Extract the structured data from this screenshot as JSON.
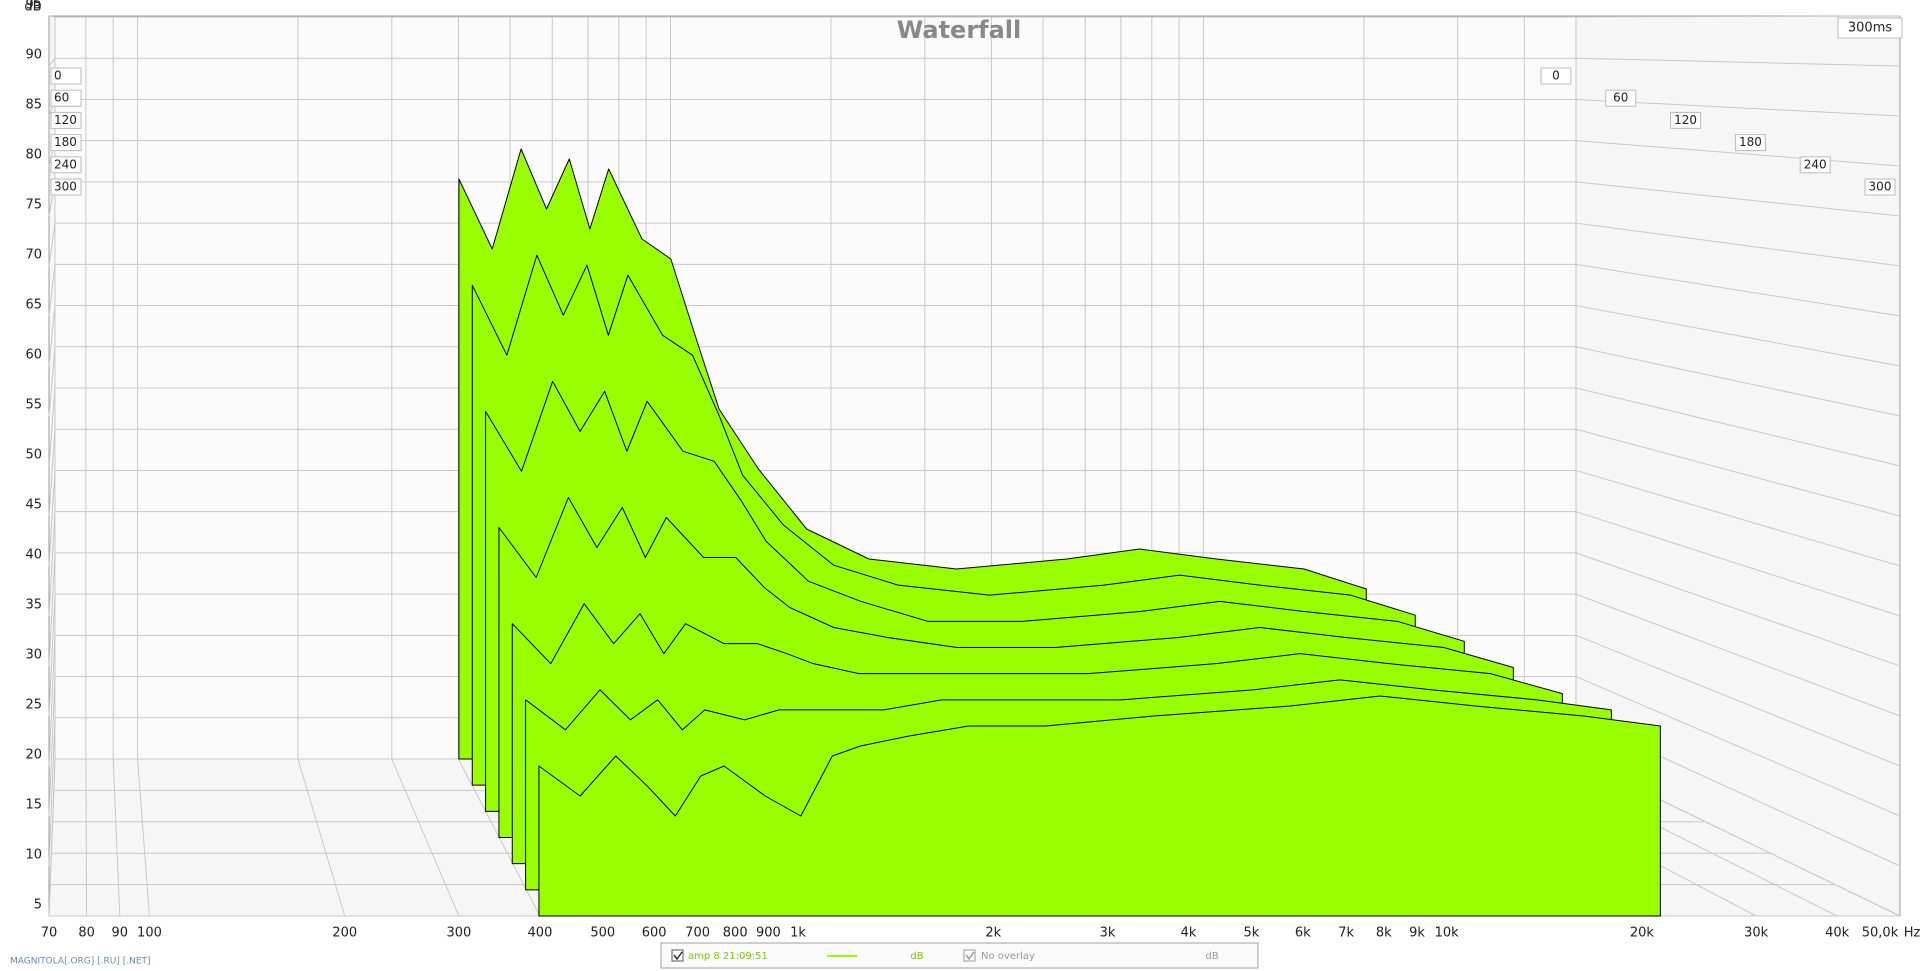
{
  "chart_data": {
    "type": "waterfall",
    "title": "Waterfall",
    "y_label": "dB",
    "x_unit": "Hz",
    "time_unit_label": "300ms",
    "xscale": "log",
    "xlim": [
      70,
      50000
    ],
    "xticks": [
      70,
      80,
      90,
      100,
      200,
      300,
      400,
      500,
      600,
      700,
      800,
      900,
      {
        "value": 1000,
        "label": "1k"
      },
      {
        "value": 2000,
        "label": "2k"
      },
      {
        "value": 3000,
        "label": "3k"
      },
      {
        "value": 4000,
        "label": "4k"
      },
      {
        "value": 5000,
        "label": "5k"
      },
      {
        "value": 6000,
        "label": "6k"
      },
      {
        "value": 7000,
        "label": "7k"
      },
      {
        "value": 8000,
        "label": "8k"
      },
      {
        "value": 9000,
        "label": "9k"
      },
      {
        "value": 10000,
        "label": "10k"
      },
      {
        "value": 20000,
        "label": "20k"
      },
      {
        "value": 30000,
        "label": "30k"
      },
      {
        "value": 40000,
        "label": "40k"
      },
      {
        "value": 50000,
        "label": "50,0k"
      }
    ],
    "ylim": [
      5,
      95
    ],
    "yticks": [
      5,
      10,
      15,
      20,
      25,
      30,
      35,
      40,
      45,
      50,
      55,
      60,
      65,
      70,
      75,
      80,
      85,
      90,
      95
    ],
    "tlim": [
      0,
      300
    ],
    "tticks": [
      0,
      60,
      120,
      180,
      240,
      300
    ],
    "color": "#99ff00",
    "grid": true,
    "x": [
      300,
      350,
      400,
      450,
      500,
      550,
      600,
      700,
      800,
      900,
      1000,
      1200,
      1500,
      2000,
      3000,
      5000,
      7000,
      10000,
      15000,
      20000
    ],
    "slices": [
      {
        "time": 0,
        "values": [
          63,
          56,
          66,
          60,
          65,
          58,
          64,
          57,
          55,
          47,
          40,
          34,
          28,
          25,
          24,
          25,
          26,
          25,
          24,
          22
        ]
      },
      {
        "time": 50,
        "values": [
          55,
          48,
          58,
          52,
          57,
          50,
          56,
          50,
          48,
          42,
          36,
          31,
          27,
          25,
          24,
          25,
          26,
          25,
          24,
          22
        ]
      },
      {
        "time": 100,
        "values": [
          45,
          39,
          48,
          43,
          47,
          41,
          46,
          41,
          40,
          36,
          32,
          28,
          26,
          24,
          24,
          25,
          26,
          25,
          24,
          22
        ]
      },
      {
        "time": 150,
        "values": [
          36,
          31,
          39,
          34,
          38,
          33,
          37,
          33,
          33,
          30,
          28,
          26,
          25,
          24,
          24,
          25,
          26,
          25,
          24,
          22
        ]
      },
      {
        "time": 200,
        "values": [
          29,
          25,
          31,
          27,
          30,
          26,
          29,
          27,
          27,
          26,
          25,
          24,
          24,
          24,
          24,
          25,
          26,
          25,
          24,
          22
        ]
      },
      {
        "time": 250,
        "values": [
          24,
          21,
          25,
          22,
          24,
          21,
          23,
          22,
          23,
          23,
          23,
          23,
          24,
          24,
          24,
          25,
          26,
          25,
          24,
          23
        ]
      },
      {
        "time": 300,
        "values": [
          20,
          17,
          21,
          18,
          15,
          19,
          20,
          17,
          15,
          21,
          22,
          23,
          24,
          24,
          25,
          26,
          27,
          26,
          25,
          24
        ]
      }
    ],
    "legend": {
      "measurement": "amp 8 21:09:51",
      "unit": "dB",
      "overlay": "No overlay",
      "overlay_unit": "dB"
    },
    "watermark": "MAGNITOLA[.ORG] [.RU] [.NET]"
  }
}
